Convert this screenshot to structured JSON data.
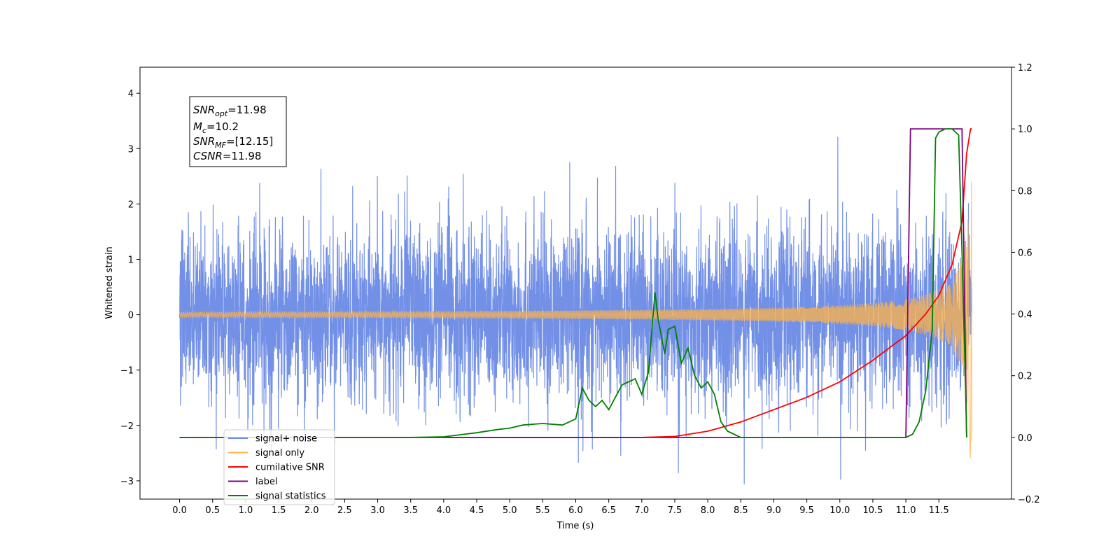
{
  "chart_data": {
    "type": "line",
    "xlabel": "Time (s)",
    "ylabel_left": "Whitened strain",
    "ylabel_right": "",
    "xlim": [
      -0.6,
      12.6
    ],
    "ylim_left": [
      -3.33,
      4.47
    ],
    "ylim_right": [
      -0.2,
      1.2
    ],
    "x_ticks": [
      "0.0",
      "0.5",
      "1.0",
      "1.5",
      "2.0",
      "2.5",
      "3.0",
      "3.5",
      "4.0",
      "4.5",
      "5.0",
      "5.5",
      "6.0",
      "6.5",
      "7.0",
      "7.5",
      "8.0",
      "8.5",
      "9.0",
      "9.5",
      "10.0",
      "10.5",
      "11.0",
      "11.5"
    ],
    "y_ticks_left": [
      "−3",
      "−2",
      "−1",
      "0",
      "1",
      "2",
      "3",
      "4"
    ],
    "y_ticks_right": [
      "−0.2",
      "0.0",
      "0.2",
      "0.4",
      "0.6",
      "0.8",
      "1.0",
      "1.2"
    ],
    "grid": false,
    "legend_placement": "lower-left",
    "annotation": {
      "line1": {
        "name": "SNR",
        "sub": "opt",
        "value": "=11.98"
      },
      "line2": {
        "name": "M",
        "sub": "c",
        "value": "=10.2"
      },
      "line3": {
        "name": "SNR",
        "sub": "MF",
        "value": "=[12.15]"
      },
      "line4": {
        "name": "CSNR",
        "value": "=11.98"
      }
    },
    "series": [
      {
        "name": "signal+ noise",
        "axis": "left",
        "color": "#6b8ae6",
        "kind": "noise",
        "noise_std": 0.75,
        "x_range": [
          0.0,
          12.0
        ]
      },
      {
        "name": "signal only",
        "axis": "left",
        "color": "#ffb347",
        "kind": "chirp",
        "x_range": [
          0.0,
          12.0
        ]
      },
      {
        "name": "cumilative SNR",
        "axis": "right",
        "color": "#ff0000",
        "x": [
          0.0,
          7.0,
          7.5,
          8.0,
          8.5,
          9.0,
          9.5,
          10.0,
          10.5,
          11.0,
          11.3,
          11.5,
          11.7,
          11.85,
          11.92,
          11.98,
          12.0
        ],
        "y": [
          0.0,
          0.0,
          0.003,
          0.02,
          0.05,
          0.09,
          0.13,
          0.18,
          0.25,
          0.33,
          0.4,
          0.46,
          0.56,
          0.7,
          0.92,
          1.0,
          1.0
        ]
      },
      {
        "name": "label",
        "axis": "right",
        "color": "#800080",
        "x": [
          0.0,
          11.0,
          11.07,
          11.85,
          11.92
        ],
        "y": [
          0.0,
          0.0,
          1.0,
          1.0,
          0.0
        ]
      },
      {
        "name": "signal statistics",
        "axis": "right",
        "color": "#008000",
        "x": [
          0.0,
          3.5,
          4.0,
          4.3,
          4.5,
          4.8,
          5.0,
          5.2,
          5.5,
          5.8,
          6.0,
          6.1,
          6.2,
          6.3,
          6.4,
          6.5,
          6.7,
          6.9,
          7.0,
          7.1,
          7.2,
          7.25,
          7.35,
          7.4,
          7.5,
          7.6,
          7.7,
          7.8,
          7.9,
          8.0,
          8.1,
          8.2,
          8.3,
          8.4,
          8.5,
          11.0,
          11.1,
          11.2,
          11.3,
          11.4,
          11.45,
          11.5,
          11.6,
          11.7,
          11.8,
          11.85,
          11.9,
          11.92
        ],
        "y": [
          0.0,
          0.0,
          0.002,
          0.01,
          0.015,
          0.025,
          0.03,
          0.04,
          0.045,
          0.04,
          0.06,
          0.16,
          0.12,
          0.1,
          0.12,
          0.09,
          0.17,
          0.19,
          0.14,
          0.21,
          0.47,
          0.38,
          0.27,
          0.35,
          0.36,
          0.24,
          0.29,
          0.2,
          0.16,
          0.18,
          0.14,
          0.05,
          0.02,
          0.01,
          0.0,
          0.0,
          0.01,
          0.05,
          0.15,
          0.35,
          0.97,
          0.99,
          1.0,
          1.0,
          0.98,
          0.6,
          0.2,
          0.0
        ]
      }
    ]
  }
}
